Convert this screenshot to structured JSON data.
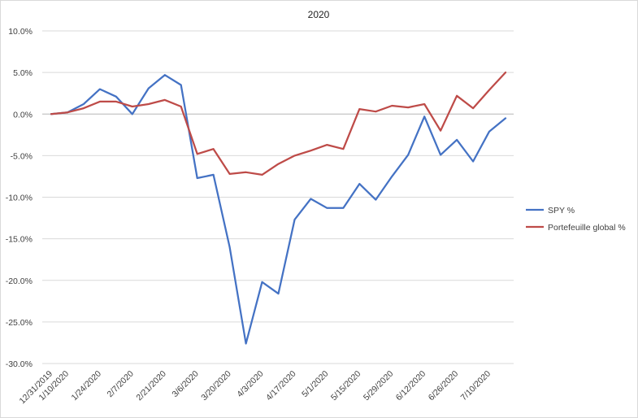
{
  "chart_data": {
    "type": "line",
    "title": "2020",
    "xlabel": "",
    "ylabel": "",
    "ylim": [
      -30,
      10
    ],
    "y_ticks": [
      10,
      5,
      0,
      -5,
      -10,
      -15,
      -20,
      -25,
      -30
    ],
    "y_tick_labels": [
      "10.0%",
      "5.0%",
      "0.0%",
      "-5.0%",
      "-10.0%",
      "-15.0%",
      "-20.0%",
      "-25.0%",
      "-30.0%"
    ],
    "x_tick_labels": [
      "12/31/2019",
      "1/10/2020",
      "1/24/2020",
      "2/7/2020",
      "2/21/2020",
      "3/6/2020",
      "3/20/2020",
      "4/3/2020",
      "4/17/2020",
      "5/1/2020",
      "5/15/2020",
      "5/29/2020",
      "6/12/2020",
      "6/26/2020",
      "7/10/2020"
    ],
    "x_tick_indices": [
      0,
      1,
      3,
      5,
      7,
      9,
      11,
      13,
      15,
      17,
      19,
      21,
      23,
      25,
      27
    ],
    "gridlines": true,
    "legend_position": "right",
    "series": [
      {
        "name": "SPY %",
        "color": "#4472c4",
        "values": [
          0.0,
          0.2,
          1.2,
          3.0,
          2.1,
          0.0,
          3.1,
          4.7,
          3.5,
          -7.7,
          -7.3,
          -16.0,
          -27.6,
          -20.2,
          -21.6,
          -12.7,
          -10.2,
          -11.3,
          -11.3,
          -8.4,
          -10.3,
          -7.5,
          -4.9,
          -0.3,
          -4.9,
          -3.1,
          -5.7,
          -2.1,
          -0.5
        ]
      },
      {
        "name": "Portefeuille global %",
        "color": "#be4b48",
        "values": [
          0.0,
          0.2,
          0.7,
          1.5,
          1.5,
          0.9,
          1.2,
          1.7,
          0.9,
          -4.8,
          -4.2,
          -7.2,
          -7.0,
          -7.3,
          -6.0,
          -5.0,
          -4.4,
          -3.7,
          -4.2,
          0.6,
          0.3,
          1.0,
          0.8,
          1.2,
          -2.0,
          2.2,
          0.7,
          2.9,
          5.0
        ]
      }
    ]
  }
}
